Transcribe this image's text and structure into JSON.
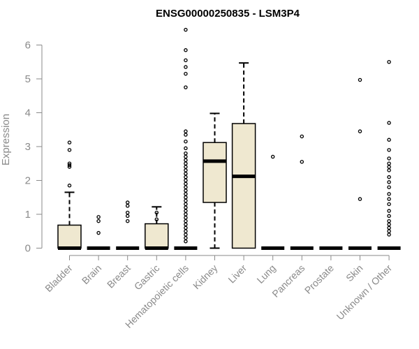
{
  "chart_data": {
    "type": "boxplot",
    "title": "ENSG00000250835 - LSM3P4",
    "xlabel": "",
    "ylabel": "Expression",
    "ylim": [
      0,
      6.5
    ],
    "yticks": [
      0,
      1,
      2,
      3,
      4,
      5,
      6
    ],
    "grid": false,
    "box_fill": "#efe8d0",
    "categories": [
      "Bladder",
      "Brain",
      "Breast",
      "Gastric",
      "Hematopoietic cells",
      "Kidney",
      "Liver",
      "Lung",
      "Pancreas",
      "Prostate",
      "Skin",
      "Unknown / Other"
    ],
    "boxes": [
      {
        "q1": 0,
        "median": 0,
        "q3": 0.68,
        "whisker_low": 0,
        "whisker_high": 1.65,
        "outliers": [
          1.85,
          2.4,
          2.45,
          2.5,
          2.9,
          3.12
        ]
      },
      {
        "q1": 0,
        "median": 0,
        "q3": 0,
        "whisker_low": 0,
        "whisker_high": 0,
        "outliers": [
          0.45,
          0.8,
          0.92
        ]
      },
      {
        "q1": 0,
        "median": 0,
        "q3": 0,
        "whisker_low": 0,
        "whisker_high": 0,
        "outliers": [
          0.8,
          0.95,
          1.05,
          1.25,
          1.35
        ]
      },
      {
        "q1": 0,
        "median": 0,
        "q3": 0.72,
        "whisker_low": 0,
        "whisker_high": 1.22,
        "outliers": [
          0.85,
          1.05
        ]
      },
      {
        "q1": 0,
        "median": 0,
        "q3": 0,
        "whisker_low": 0,
        "whisker_high": 0,
        "outliers": [
          0.2,
          0.3,
          0.4,
          0.5,
          0.6,
          0.7,
          0.8,
          0.9,
          1.0,
          1.1,
          1.2,
          1.3,
          1.4,
          1.5,
          1.6,
          1.7,
          1.8,
          1.9,
          2.0,
          2.1,
          2.2,
          2.3,
          2.4,
          2.5,
          2.6,
          2.7,
          2.8,
          2.95,
          3.15,
          3.35,
          3.45,
          4.75,
          5.15,
          5.35,
          5.55,
          5.85,
          6.45
        ]
      },
      {
        "q1": 1.35,
        "median": 2.57,
        "q3": 3.12,
        "whisker_low": 0,
        "whisker_high": 3.98,
        "outliers": []
      },
      {
        "q1": 0,
        "median": 2.12,
        "q3": 3.68,
        "whisker_low": 0,
        "whisker_high": 5.47,
        "outliers": []
      },
      {
        "q1": 0,
        "median": 0,
        "q3": 0,
        "whisker_low": 0,
        "whisker_high": 0,
        "outliers": [
          2.7
        ]
      },
      {
        "q1": 0,
        "median": 0,
        "q3": 0,
        "whisker_low": 0,
        "whisker_high": 0,
        "outliers": [
          2.55,
          3.3
        ]
      },
      {
        "q1": 0,
        "median": 0,
        "q3": 0,
        "whisker_low": 0,
        "whisker_high": 0,
        "outliers": []
      },
      {
        "q1": 0,
        "median": 0,
        "q3": 0,
        "whisker_low": 0,
        "whisker_high": 0,
        "outliers": [
          1.45,
          3.45,
          4.97
        ]
      },
      {
        "q1": 0,
        "median": 0,
        "q3": 0,
        "whisker_low": 0,
        "whisker_high": 0,
        "outliers": [
          0.4,
          0.5,
          0.6,
          0.7,
          0.8,
          0.95,
          1.1,
          1.3,
          1.45,
          1.6,
          1.8,
          1.95,
          2.1,
          2.3,
          2.4,
          2.5,
          2.65,
          2.9,
          3.2,
          3.7,
          5.5
        ]
      }
    ]
  }
}
